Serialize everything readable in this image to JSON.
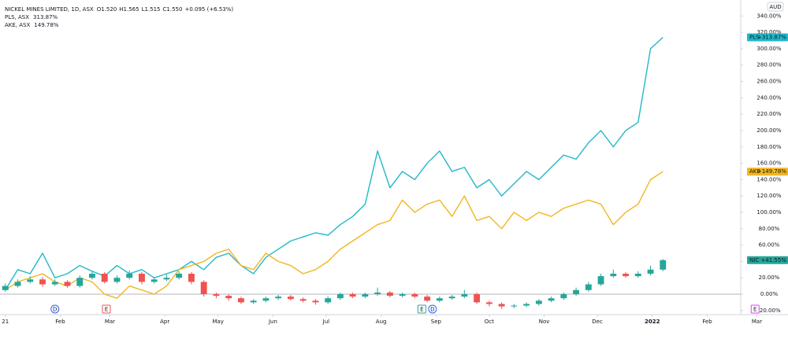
{
  "chart_data": {
    "type": "candlestick",
    "title": "NICKEL MINES LIMITED, 1D, ASX",
    "ohlc_header": [
      "O1.520",
      "H1.565",
      "L1.515",
      "C1.550",
      "+0.095 (+6.53%)"
    ],
    "currency": "AUD",
    "x": [
      0,
      7,
      14,
      21,
      28,
      35,
      42,
      49,
      56,
      63,
      70,
      77,
      84,
      91,
      98,
      105,
      112,
      119,
      126,
      133,
      140,
      147,
      154,
      161,
      168,
      175,
      182,
      189,
      196,
      203,
      210,
      217,
      224,
      231,
      238,
      245,
      252,
      259,
      266,
      273,
      280,
      287,
      294,
      301,
      308,
      315,
      322,
      329,
      336,
      343,
      350,
      357,
      364,
      371
    ],
    "xlim": [
      -3,
      438
    ],
    "xticks": [
      {
        "value": 0,
        "label": "21"
      },
      {
        "value": 31,
        "label": "Feb"
      },
      {
        "value": 59,
        "label": "Mar"
      },
      {
        "value": 90,
        "label": "Apr"
      },
      {
        "value": 120,
        "label": "May"
      },
      {
        "value": 151,
        "label": "Jun"
      },
      {
        "value": 181,
        "label": "Jul"
      },
      {
        "value": 212,
        "label": "Aug"
      },
      {
        "value": 243,
        "label": "Sep"
      },
      {
        "value": 273,
        "label": "Oct"
      },
      {
        "value": 304,
        "label": "Nov"
      },
      {
        "value": 334,
        "label": "Dec"
      },
      {
        "value": 365,
        "label": "2022"
      },
      {
        "value": 396,
        "label": "Feb"
      },
      {
        "value": 424,
        "label": "Mar"
      }
    ],
    "ylim": [
      -25,
      348
    ],
    "yticks": [
      {
        "value": -20,
        "label": "-20.00%"
      },
      {
        "value": 0,
        "label": "0.00%"
      },
      {
        "value": 20,
        "label": "20.00%"
      },
      {
        "value": 40,
        "label": "40.00%"
      },
      {
        "value": 60,
        "label": "60.00%"
      },
      {
        "value": 80,
        "label": "80.00%"
      },
      {
        "value": 100,
        "label": "100.00%"
      },
      {
        "value": 120,
        "label": "120.00%"
      },
      {
        "value": 140,
        "label": "140.00%"
      },
      {
        "value": 160,
        "label": "160.00%"
      },
      {
        "value": 180,
        "label": "180.00%"
      },
      {
        "value": 200,
        "label": "200.00%"
      },
      {
        "value": 220,
        "label": "220.00%"
      },
      {
        "value": 240,
        "label": "240.00%"
      },
      {
        "value": 260,
        "label": "260.00%"
      },
      {
        "value": 280,
        "label": "280.00%"
      },
      {
        "value": 300,
        "label": "300.00%"
      },
      {
        "value": 320,
        "label": "320.00%"
      },
      {
        "value": 340,
        "label": "340.00%"
      }
    ],
    "series": [
      {
        "name": "NIC",
        "type": "candlestick",
        "up_color": "#26a69a",
        "down_color": "#ef5350",
        "color": "#26a69a",
        "last_label": "+41.55%",
        "open": [
          5,
          10,
          15,
          18,
          12,
          15,
          10,
          20,
          25,
          15,
          20,
          25,
          15,
          18,
          20,
          25,
          15,
          0,
          -2,
          -5,
          -10,
          -8,
          -5,
          -3,
          -6,
          -8,
          -10,
          -5,
          0,
          -3,
          0,
          2,
          -2,
          0,
          -3,
          -8,
          -5,
          -3,
          0,
          -10,
          -12,
          -15,
          -14,
          -12,
          -8,
          -5,
          0,
          5,
          12,
          22,
          25,
          22,
          25,
          30
        ],
        "high": [
          13,
          18,
          22,
          21,
          18,
          17,
          23,
          28,
          27,
          23,
          29,
          27,
          21,
          24,
          28,
          27,
          17,
          2,
          0,
          -3,
          -6,
          -3,
          -1,
          -1,
          -4,
          -6,
          -3,
          2,
          2,
          2,
          8,
          4,
          2,
          2,
          -1,
          -3,
          -1,
          5,
          2,
          -8,
          -10,
          -12,
          -10,
          -6,
          -3,
          2,
          8,
          15,
          25,
          30,
          27,
          28,
          35,
          43
        ],
        "low": [
          3,
          8,
          13,
          9,
          10,
          8,
          8,
          18,
          13,
          13,
          18,
          12,
          13,
          16,
          18,
          12,
          -3,
          -5,
          -8,
          -12,
          -12,
          -10,
          -7,
          -8,
          -10,
          -13,
          -12,
          -7,
          -5,
          -5,
          -2,
          -4,
          -4,
          -5,
          -10,
          -10,
          -7,
          -5,
          -12,
          -15,
          -18,
          -17,
          -16,
          -14,
          -10,
          -7,
          -2,
          3,
          10,
          20,
          20,
          20,
          23,
          28
        ],
        "close": [
          10,
          15,
          18,
          12,
          15,
          10,
          20,
          25,
          15,
          20,
          25,
          15,
          18,
          20,
          25,
          15,
          0,
          -2,
          -5,
          -10,
          -8,
          -5,
          -3,
          -6,
          -8,
          -10,
          -5,
          0,
          -3,
          0,
          2,
          -2,
          0,
          -3,
          -8,
          -5,
          -3,
          0,
          -10,
          -12,
          -15,
          -14,
          -12,
          -8,
          -5,
          0,
          5,
          12,
          22,
          25,
          22,
          25,
          30,
          41.55
        ]
      },
      {
        "name": "PLS, ASX",
        "tag": "PLS",
        "type": "line",
        "color": "#22b8c9",
        "legend_value": "313.87%",
        "last_label": "+313.87%",
        "values": [
          5,
          30,
          25,
          50,
          20,
          25,
          35,
          28,
          22,
          35,
          25,
          30,
          20,
          25,
          30,
          40,
          30,
          45,
          50,
          35,
          25,
          45,
          55,
          65,
          70,
          75,
          72,
          85,
          95,
          110,
          175,
          130,
          150,
          140,
          160,
          175,
          150,
          155,
          130,
          140,
          120,
          135,
          150,
          140,
          155,
          170,
          165,
          185,
          200,
          180,
          200,
          210,
          300,
          313.87
        ]
      },
      {
        "name": "AKE, ASX",
        "tag": "AKE",
        "type": "line",
        "color": "#f2b620",
        "legend_value": "149.78%",
        "last_label": "+149.78%",
        "values": [
          5,
          15,
          20,
          25,
          15,
          10,
          20,
          15,
          0,
          -5,
          10,
          5,
          0,
          10,
          30,
          35,
          40,
          50,
          55,
          35,
          30,
          50,
          40,
          35,
          25,
          30,
          40,
          55,
          65,
          75,
          85,
          90,
          115,
          100,
          110,
          115,
          95,
          120,
          90,
          95,
          80,
          100,
          90,
          100,
          95,
          105,
          110,
          115,
          110,
          85,
          100,
          110,
          140,
          149.78
        ]
      }
    ],
    "events": [
      {
        "label": "D",
        "x": 28,
        "color": "#2962ff"
      },
      {
        "label": "E",
        "x": 57,
        "color": "#ef5350"
      },
      {
        "label": "E",
        "x": 235,
        "color": "#26a69a"
      },
      {
        "label": "D",
        "x": 241,
        "color": "#2962ff"
      },
      {
        "label": "E",
        "x": 423,
        "color": "#e040fb"
      }
    ]
  }
}
